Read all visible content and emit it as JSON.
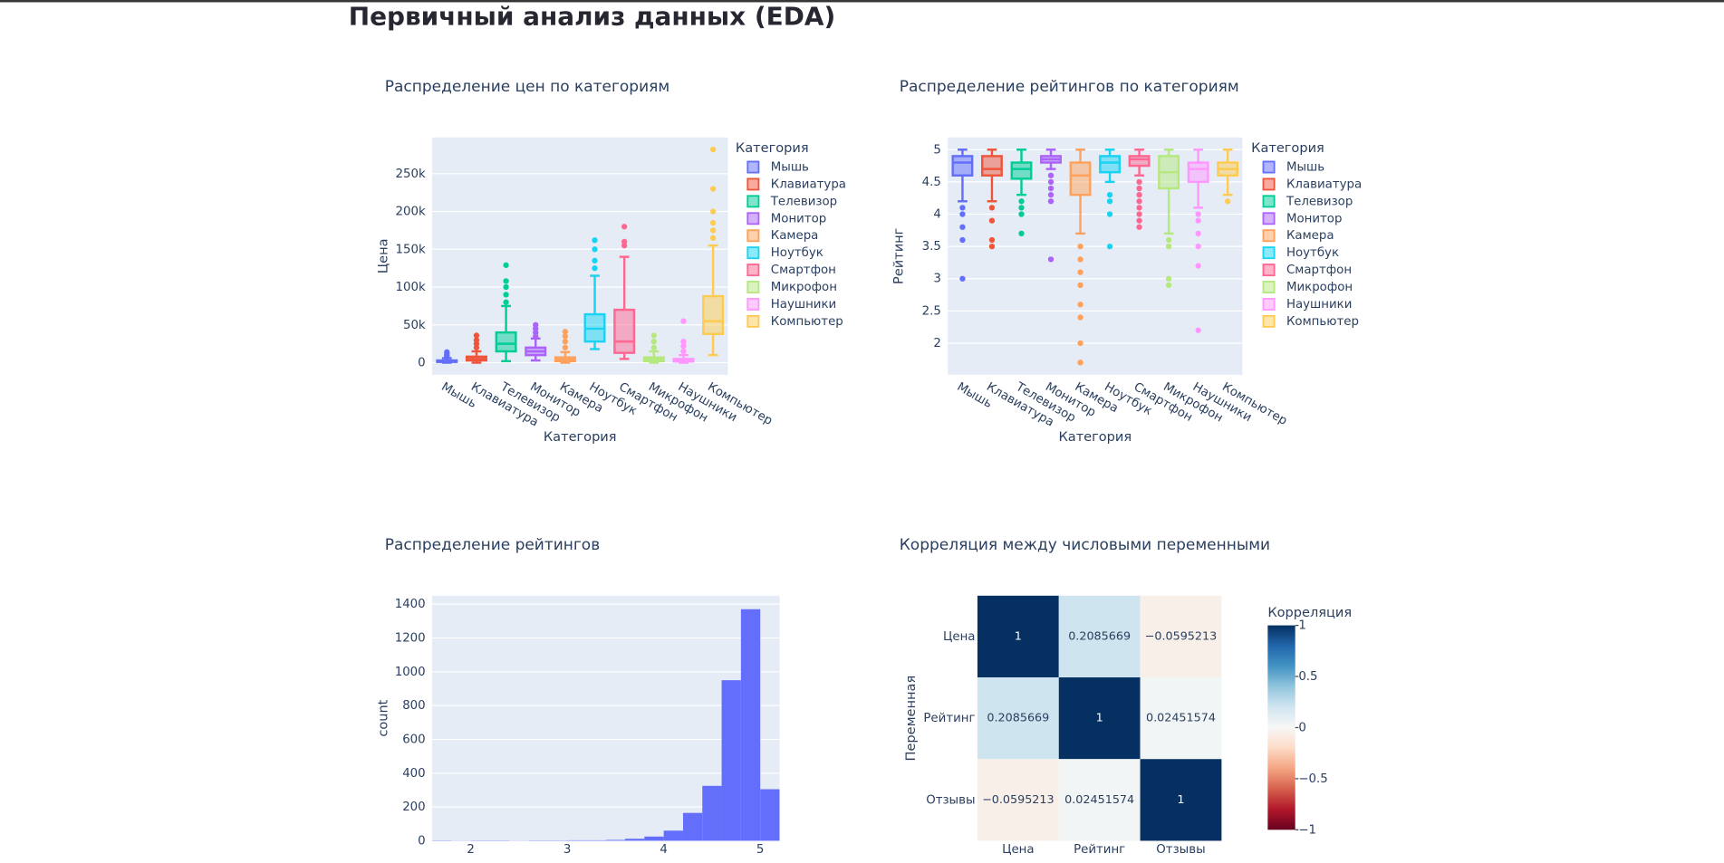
{
  "page_title": "Первичный анализ данных (EDA)",
  "chart_data": [
    {
      "type": "box",
      "title": "Распределение цен по категориям",
      "x_label": "Категория",
      "y_label": "Цена",
      "legend_title": "Категория",
      "categories": [
        "Мышь",
        "Клавиатура",
        "Телевизор",
        "Монитор",
        "Камера",
        "Ноутбук",
        "Смартфон",
        "Микрофон",
        "Наушники",
        "Компьютер"
      ],
      "ylim": [
        -16000,
        298000
      ],
      "yticks": [
        0,
        {
          "value": 50000,
          "label": "50k"
        },
        {
          "value": 100000,
          "label": "100k"
        },
        {
          "value": 150000,
          "label": "150k"
        },
        {
          "value": 200000,
          "label": "200k"
        },
        {
          "value": 250000,
          "label": "250k"
        }
      ],
      "grid": true,
      "series": [
        {
          "name": "Мышь",
          "color": "#636efa",
          "min": 0,
          "q1": 1000,
          "median": 2000,
          "q3": 3000,
          "max": 6000,
          "outliers": [
            8000,
            10000,
            12000,
            14000
          ]
        },
        {
          "name": "Клавиатура",
          "color": "#EF553B",
          "min": 0,
          "q1": 3000,
          "median": 5000,
          "q3": 8000,
          "max": 15000,
          "outliers": [
            20000,
            25000,
            30000,
            36000
          ]
        },
        {
          "name": "Телевизор",
          "color": "#00cc96",
          "min": 2000,
          "q1": 15000,
          "median": 25000,
          "q3": 40000,
          "max": 75000,
          "outliers": [
            80000,
            90000,
            100000,
            108000,
            129000
          ]
        },
        {
          "name": "Монитор",
          "color": "#ab63fa",
          "min": 3000,
          "q1": 10000,
          "median": 15000,
          "q3": 20000,
          "max": 32000,
          "outliers": [
            35000,
            40000,
            45000,
            50000
          ]
        },
        {
          "name": "Камера",
          "color": "#FFA15A",
          "min": 0,
          "q1": 2000,
          "median": 4000,
          "q3": 7000,
          "max": 14000,
          "outliers": [
            20000,
            28000,
            35000,
            41000
          ]
        },
        {
          "name": "Ноутбук",
          "color": "#19d3f3",
          "min": 18000,
          "q1": 28000,
          "median": 45000,
          "q3": 64000,
          "max": 115000,
          "outliers": [
            125000,
            135000,
            150000,
            162000
          ]
        },
        {
          "name": "Смартфон",
          "color": "#FF6692",
          "min": 5000,
          "q1": 13000,
          "median": 28000,
          "q3": 70000,
          "max": 140000,
          "outliers": [
            155000,
            160000,
            180000
          ]
        },
        {
          "name": "Микрофон",
          "color": "#B6E880",
          "min": 0,
          "q1": 2000,
          "median": 4000,
          "q3": 7000,
          "max": 15000,
          "outliers": [
            20000,
            28000,
            36000
          ]
        },
        {
          "name": "Наушники",
          "color": "#FF97FF",
          "min": 0,
          "q1": 1500,
          "median": 3000,
          "q3": 5000,
          "max": 10000,
          "outliers": [
            15000,
            22000,
            28000,
            55000
          ]
        },
        {
          "name": "Компьютер",
          "color": "#FECB52",
          "min": 10000,
          "q1": 38000,
          "median": 55000,
          "q3": 88000,
          "max": 155000,
          "outliers": [
            165000,
            175000,
            185000,
            200000,
            230000,
            282000
          ]
        }
      ]
    },
    {
      "type": "box",
      "title": "Распределение рейтингов по категориям",
      "x_label": "Категория",
      "y_label": "Рейтинг",
      "legend_title": "Категория",
      "categories": [
        "Мышь",
        "Клавиатура",
        "Телевизор",
        "Монитор",
        "Камера",
        "Ноутбук",
        "Смартфон",
        "Микрофон",
        "Наушники",
        "Компьютер"
      ],
      "ylim": [
        1.51,
        5.19
      ],
      "yticks": [
        2,
        2.5,
        3,
        3.5,
        4,
        4.5,
        5
      ],
      "grid": true,
      "series": [
        {
          "name": "Мышь",
          "color": "#636efa",
          "min": 4.2,
          "q1": 4.6,
          "median": 4.8,
          "q3": 4.9,
          "max": 5,
          "outliers": [
            4.1,
            4.0,
            3.8,
            3.6,
            3.0
          ]
        },
        {
          "name": "Клавиатура",
          "color": "#EF553B",
          "min": 4.2,
          "q1": 4.6,
          "median": 4.7,
          "q3": 4.9,
          "max": 5,
          "outliers": [
            4.1,
            3.9,
            3.6,
            3.5
          ]
        },
        {
          "name": "Телевизор",
          "color": "#00cc96",
          "min": 4.3,
          "q1": 4.55,
          "median": 4.7,
          "q3": 4.8,
          "max": 5,
          "outliers": [
            4.2,
            4.1,
            4.0,
            3.7
          ]
        },
        {
          "name": "Монитор",
          "color": "#ab63fa",
          "min": 4.7,
          "q1": 4.8,
          "median": 4.85,
          "q3": 4.9,
          "max": 5,
          "outliers": [
            4.6,
            4.5,
            4.4,
            4.3,
            4.2,
            3.3
          ]
        },
        {
          "name": "Камера",
          "color": "#FFA15A",
          "min": 3.7,
          "q1": 4.3,
          "median": 4.6,
          "q3": 4.8,
          "max": 5,
          "outliers": [
            3.5,
            3.3,
            3.1,
            2.9,
            2.6,
            2.4,
            2.0,
            1.7
          ]
        },
        {
          "name": "Ноутбук",
          "color": "#19d3f3",
          "min": 4.5,
          "q1": 4.65,
          "median": 4.8,
          "q3": 4.9,
          "max": 5,
          "outliers": [
            4.3,
            4.2,
            4.0,
            3.5
          ]
        },
        {
          "name": "Смартфон",
          "color": "#FF6692",
          "min": 4.6,
          "q1": 4.75,
          "median": 4.85,
          "q3": 4.9,
          "max": 5,
          "outliers": [
            4.5,
            4.4,
            4.3,
            4.2,
            4.1,
            4.0,
            3.9,
            3.8
          ]
        },
        {
          "name": "Микрофон",
          "color": "#B6E880",
          "min": 3.7,
          "q1": 4.4,
          "median": 4.65,
          "q3": 4.9,
          "max": 5,
          "outliers": [
            3.6,
            3.5,
            3.0,
            2.9
          ]
        },
        {
          "name": "Наушники",
          "color": "#FF97FF",
          "min": 4.1,
          "q1": 4.5,
          "median": 4.7,
          "q3": 4.8,
          "max": 5,
          "outliers": [
            4.0,
            3.9,
            3.7,
            3.5,
            3.2,
            2.2
          ]
        },
        {
          "name": "Компьютер",
          "color": "#FECB52",
          "min": 4.3,
          "q1": 4.6,
          "median": 4.7,
          "q3": 4.8,
          "max": 5,
          "outliers": [
            4.2
          ]
        }
      ]
    },
    {
      "type": "histogram",
      "title": "Распределение рейтингов",
      "y_label": "count",
      "color": "#636efa",
      "bins": [
        1.6,
        1.8,
        2.0,
        2.2,
        2.4,
        2.6,
        2.8,
        3.0,
        3.2,
        3.4,
        3.6,
        3.8,
        4.0,
        4.2,
        4.4,
        4.6,
        4.8,
        5.0,
        5.2
      ],
      "values": [
        2,
        1,
        2,
        2,
        1,
        2,
        2,
        3,
        3,
        5,
        12,
        25,
        60,
        165,
        325,
        950,
        1370,
        305
      ],
      "xlim": [
        1.6,
        5.2
      ],
      "xticks": [
        2,
        3,
        4,
        5
      ],
      "ylim": [
        0,
        1450
      ],
      "yticks": [
        0,
        200,
        400,
        600,
        800,
        1000,
        1200,
        1400
      ],
      "grid": true
    },
    {
      "type": "heatmap",
      "title": "Корреляция между числовыми переменными",
      "y_label": "Переменная",
      "colorbar_title": "Корреляция",
      "x": [
        "Цена",
        "Рейтинг",
        "Отзывы"
      ],
      "y": [
        "Цена",
        "Рейтинг",
        "Отзывы"
      ],
      "z": [
        [
          1,
          0.2085669,
          -0.0595213
        ],
        [
          0.2085669,
          1,
          0.02451574
        ],
        [
          -0.0595213,
          0.02451574,
          1
        ]
      ],
      "value_labels": [
        [
          "1",
          "0.2085669",
          "−0.0595213"
        ],
        [
          "0.2085669",
          "1",
          "0.02451574"
        ],
        [
          "−0.0595213",
          "0.02451574",
          "1"
        ]
      ],
      "zlim": [
        -1,
        1
      ],
      "zticks": [
        1,
        0.5,
        0,
        {
          "value": -0.5,
          "label": "−0.5"
        },
        {
          "value": -1,
          "label": "−1"
        }
      ],
      "colorscale": [
        "#67001f",
        "#b2182b",
        "#d6604d",
        "#f4a582",
        "#fddbc7",
        "#f7f7f7",
        "#d1e5f0",
        "#92c5de",
        "#4393c3",
        "#2166ac",
        "#053061"
      ]
    }
  ]
}
